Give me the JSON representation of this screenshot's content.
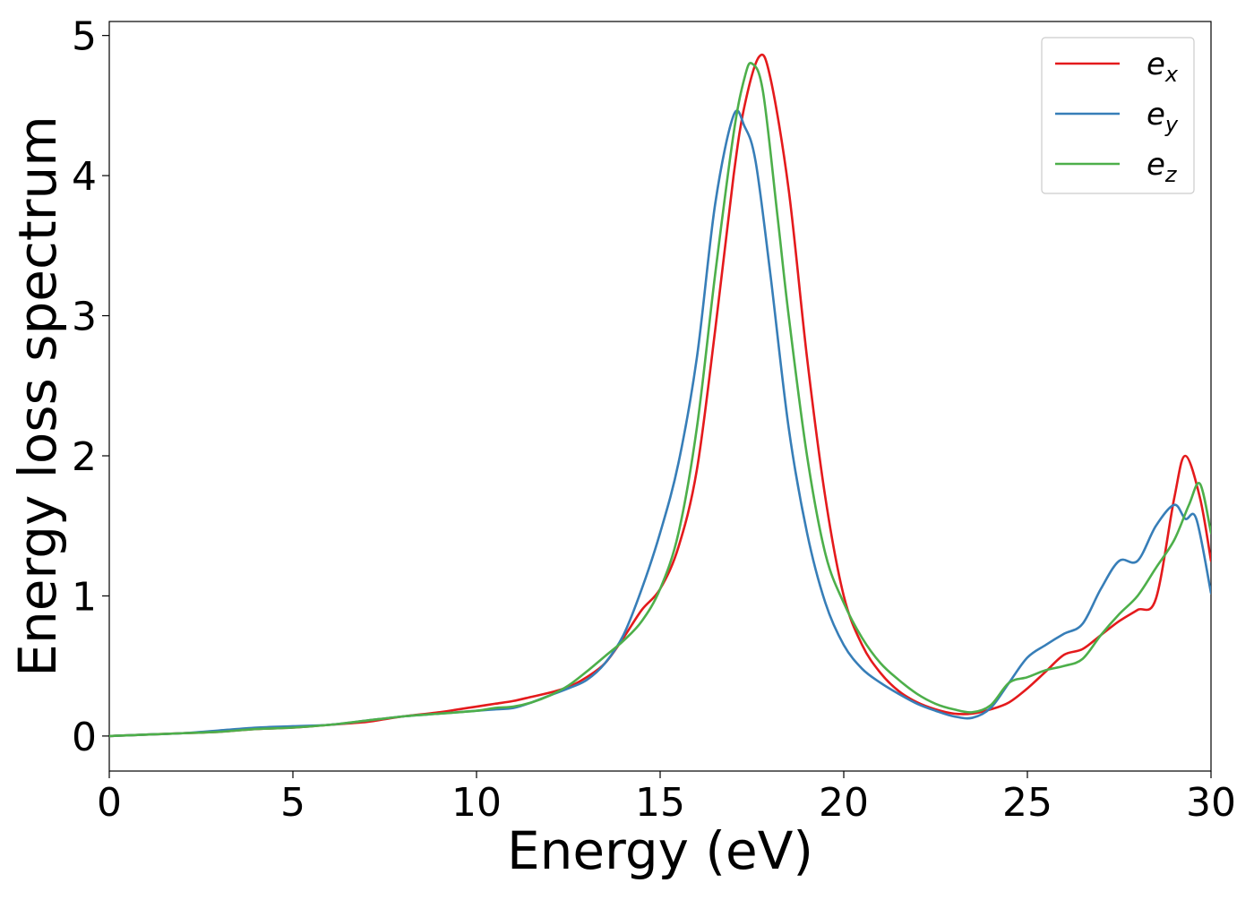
{
  "chart_data": {
    "type": "line",
    "title": "",
    "xlabel": "Energy (eV)",
    "ylabel": "Energy loss spectrum",
    "xlim": [
      0,
      30
    ],
    "ylim": [
      -0.25,
      5.1
    ],
    "xticks": [
      0,
      5,
      10,
      15,
      20,
      25,
      30
    ],
    "yticks": [
      0,
      1,
      2,
      3,
      4,
      5
    ],
    "xtick_labels": [
      "0",
      "5",
      "10",
      "15",
      "20",
      "25",
      "30"
    ],
    "ytick_labels": [
      "0",
      "1",
      "2",
      "3",
      "4",
      "5"
    ],
    "grid": false,
    "legend_position": "top-right",
    "series": [
      {
        "name": "e_x",
        "legend_base": "e",
        "legend_sub": "x",
        "color": "#e41a1c",
        "x": [
          0,
          1,
          2,
          3,
          4,
          5,
          6,
          7,
          7.5,
          8,
          9,
          9.5,
          10,
          10.5,
          11,
          11.5,
          12,
          12.5,
          13,
          13.5,
          14,
          14.5,
          15,
          15.5,
          16,
          16.5,
          17,
          17.3,
          17.7,
          18,
          18.5,
          19,
          19.5,
          20,
          20.5,
          21,
          21.5,
          22,
          22.5,
          23,
          23.5,
          24,
          24.5,
          25,
          25.5,
          26,
          26.5,
          27,
          27.5,
          28,
          28.5,
          29,
          29.3,
          29.7,
          30
        ],
        "y": [
          0,
          0.01,
          0.02,
          0.03,
          0.05,
          0.06,
          0.08,
          0.1,
          0.12,
          0.14,
          0.17,
          0.19,
          0.21,
          0.23,
          0.25,
          0.28,
          0.31,
          0.35,
          0.42,
          0.52,
          0.7,
          0.9,
          1.05,
          1.35,
          1.9,
          2.9,
          4.0,
          4.5,
          4.85,
          4.7,
          3.9,
          2.7,
          1.7,
          1.0,
          0.65,
          0.45,
          0.32,
          0.24,
          0.19,
          0.16,
          0.16,
          0.19,
          0.24,
          0.34,
          0.46,
          0.58,
          0.62,
          0.72,
          0.82,
          0.9,
          0.98,
          1.7,
          2.0,
          1.7,
          1.25
        ]
      },
      {
        "name": "e_y",
        "legend_base": "e",
        "legend_sub": "y",
        "color": "#377eb8",
        "x": [
          0,
          1,
          2,
          3,
          4,
          5,
          6,
          7,
          8,
          9,
          10,
          10.5,
          11,
          11.5,
          12,
          12.5,
          13,
          13.5,
          14,
          14.5,
          15,
          15.5,
          16,
          16.5,
          17,
          17.3,
          17.6,
          18,
          18.5,
          19,
          19.5,
          20,
          20.5,
          21,
          21.5,
          22,
          22.5,
          23,
          23.5,
          24,
          24.5,
          25,
          25.5,
          26,
          26.5,
          27,
          27.5,
          28,
          28.5,
          29,
          29.3,
          29.6,
          30
        ],
        "y": [
          0,
          0.01,
          0.02,
          0.04,
          0.06,
          0.07,
          0.08,
          0.11,
          0.14,
          0.16,
          0.18,
          0.19,
          0.2,
          0.24,
          0.29,
          0.34,
          0.4,
          0.52,
          0.72,
          1.05,
          1.45,
          1.95,
          2.7,
          3.8,
          4.43,
          4.35,
          4.1,
          3.3,
          2.2,
          1.45,
          0.95,
          0.65,
          0.48,
          0.38,
          0.3,
          0.23,
          0.18,
          0.14,
          0.13,
          0.2,
          0.38,
          0.56,
          0.65,
          0.73,
          0.8,
          1.05,
          1.25,
          1.25,
          1.5,
          1.65,
          1.55,
          1.55,
          1.02
        ]
      },
      {
        "name": "e_z",
        "legend_base": "e",
        "legend_sub": "z",
        "color": "#4daf4a",
        "x": [
          0,
          1,
          2,
          3,
          4,
          5,
          6,
          7,
          8,
          9,
          10,
          10.5,
          11,
          11.5,
          12,
          12.5,
          13,
          13.5,
          14,
          14.5,
          15,
          15.5,
          16,
          16.5,
          17,
          17.3,
          17.5,
          17.8,
          18.2,
          18.5,
          19,
          19.5,
          20,
          20.5,
          21,
          21.5,
          22,
          22.5,
          23,
          23.5,
          24,
          24.5,
          25,
          25.5,
          26,
          26.5,
          27,
          27.5,
          28,
          28.5,
          29,
          29.4,
          29.7,
          30
        ],
        "y": [
          0,
          0.01,
          0.02,
          0.03,
          0.05,
          0.06,
          0.08,
          0.11,
          0.14,
          0.16,
          0.18,
          0.2,
          0.21,
          0.24,
          0.29,
          0.36,
          0.46,
          0.57,
          0.68,
          0.82,
          1.05,
          1.45,
          2.2,
          3.3,
          4.3,
          4.7,
          4.8,
          4.6,
          3.7,
          3.0,
          2.0,
          1.3,
          0.95,
          0.7,
          0.52,
          0.4,
          0.3,
          0.23,
          0.19,
          0.17,
          0.22,
          0.38,
          0.42,
          0.47,
          0.5,
          0.55,
          0.72,
          0.87,
          1.0,
          1.2,
          1.4,
          1.65,
          1.8,
          1.45
        ]
      }
    ]
  }
}
